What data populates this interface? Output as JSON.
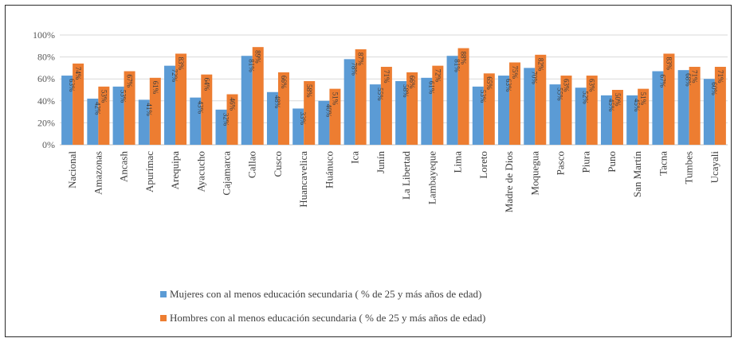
{
  "colors": {
    "women": "#5b9bd5",
    "men": "#ed7d31",
    "grid": "#d9d9d9",
    "axis": "#bfbfbf"
  },
  "chart_data": {
    "type": "bar",
    "title": "",
    "xlabel": "",
    "ylabel": "",
    "ylim": [
      0,
      100
    ],
    "yticks": [
      "0%",
      "20%",
      "40%",
      "60%",
      "80%",
      "100%"
    ],
    "grid": true,
    "legend_position": "bottom",
    "categories": [
      "Nacional",
      "Amazonas",
      "Ancash",
      "Apurímac",
      "Arequipa",
      "Ayacucho",
      "Cajamarca",
      "Callao",
      "Cusco",
      "Huancavelica",
      "Huánuco",
      "Ica",
      "Junín",
      "La Libertad",
      "Lambayeque",
      "Lima",
      "Loreto",
      "Madre de Dios",
      "Moquegua",
      "Pasco",
      "Piura",
      "Puno",
      "San Martín",
      "Tacna",
      "Tumbes",
      "Ucayali"
    ],
    "series": [
      {
        "name": "Mujeres con al menos educación secundaria ( % de 25 y más años de edad)",
        "values": [
          63,
          42,
          53,
          41,
          72,
          43,
          32,
          81,
          48,
          33,
          40,
          78,
          55,
          58,
          61,
          81,
          53,
          63,
          70,
          55,
          52,
          45,
          45,
          67,
          68,
          60
        ],
        "labels": [
          "63%",
          "42%",
          "53%",
          "41%",
          "72%",
          "43%",
          "32%",
          "81%",
          "48%",
          "33%",
          "40%",
          "78%",
          "55%",
          "58%",
          "61%",
          "81%",
          "53%",
          "63%",
          "70%",
          "55%",
          "52%",
          "45%",
          "45%",
          "67%",
          "68%",
          "60%"
        ]
      },
      {
        "name": "Hombres con al menos educación secundaria ( % de 25 y más años de edad)",
        "values": [
          74,
          53,
          67,
          61,
          83,
          64,
          46,
          89,
          66,
          58,
          51,
          87,
          71,
          66,
          72,
          88,
          65,
          75,
          82,
          63,
          63,
          50,
          51,
          83,
          71,
          71
        ],
        "labels": [
          "74%",
          "53%",
          "67%",
          "61%",
          "83%",
          "64%",
          "46%",
          "89%",
          "66%",
          "58%",
          "51%",
          "87%",
          "71%",
          "66%",
          "72%",
          "88%",
          "65%",
          "75%",
          "82%",
          "63%",
          "63%",
          "50%",
          "51%",
          "83%",
          "71%",
          "71%"
        ]
      }
    ]
  }
}
